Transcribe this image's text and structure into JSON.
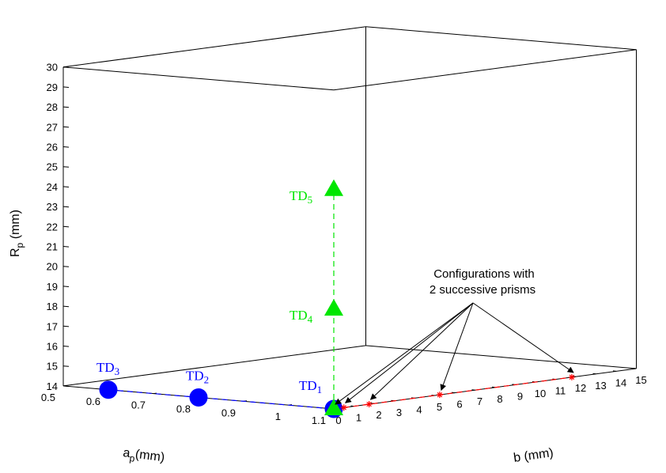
{
  "chart_data": {
    "type": "scatter",
    "title": "",
    "axes": {
      "x": {
        "label": "a",
        "label_sub": "p",
        "label_suffix": "(mm)",
        "range": [
          0.5,
          1.1
        ],
        "ticks": [
          "0.5",
          "0.6",
          "0.7",
          "0.8",
          "0.9",
          "1",
          "1.1"
        ]
      },
      "y": {
        "label": "b (mm)",
        "range": [
          0,
          15
        ],
        "ticks": [
          "0",
          "1",
          "2",
          "3",
          "4",
          "5",
          "6",
          "7",
          "8",
          "9",
          "10",
          "11",
          "12",
          "13",
          "14",
          "15"
        ]
      },
      "z": {
        "label": "R",
        "label_sub": "p",
        "label_suffix": " (mm)",
        "range": [
          14,
          30
        ],
        "ticks": [
          "14",
          "15",
          "16",
          "17",
          "18",
          "19",
          "20",
          "21",
          "22",
          "23",
          "24",
          "25",
          "26",
          "27",
          "28",
          "29",
          "30"
        ]
      }
    },
    "grid": false,
    "series": [
      {
        "color": "#0000ff",
        "marker": "circle",
        "line": "dashed",
        "points": [
          {
            "a": 0.6,
            "b": 0,
            "R": 14,
            "label": "TD",
            "sub": "3"
          },
          {
            "a": 0.8,
            "b": 0,
            "R": 14,
            "label": "TD",
            "sub": "2"
          },
          {
            "a": 1.1,
            "b": 0,
            "R": 14,
            "label": "TD",
            "sub": "1"
          }
        ]
      },
      {
        "color": "#00e600",
        "marker": "triangle",
        "line": "dashed",
        "points": [
          {
            "a": 1.1,
            "b": 0,
            "R": 14,
            "label": "",
            "sub": ""
          },
          {
            "a": 1.1,
            "b": 0,
            "R": 19,
            "label": "TD",
            "sub": "4"
          },
          {
            "a": 1.1,
            "b": 0,
            "R": 25,
            "label": "TD",
            "sub": "5"
          }
        ]
      },
      {
        "color": "#ff0000",
        "marker": "asterisk",
        "line": "dashed",
        "points": [
          {
            "a": 1.1,
            "b": 0.5,
            "R": 14
          },
          {
            "a": 1.1,
            "b": 1.75,
            "R": 14
          },
          {
            "a": 1.1,
            "b": 5.25,
            "R": 14
          },
          {
            "a": 1.1,
            "b": 11.8,
            "R": 14
          }
        ]
      }
    ],
    "annotation": {
      "lines": [
        "Configurations with",
        "2 successive prisms"
      ],
      "targets": [
        "red-0",
        "red-1",
        "red-2",
        "red-3",
        "green-0"
      ]
    }
  }
}
